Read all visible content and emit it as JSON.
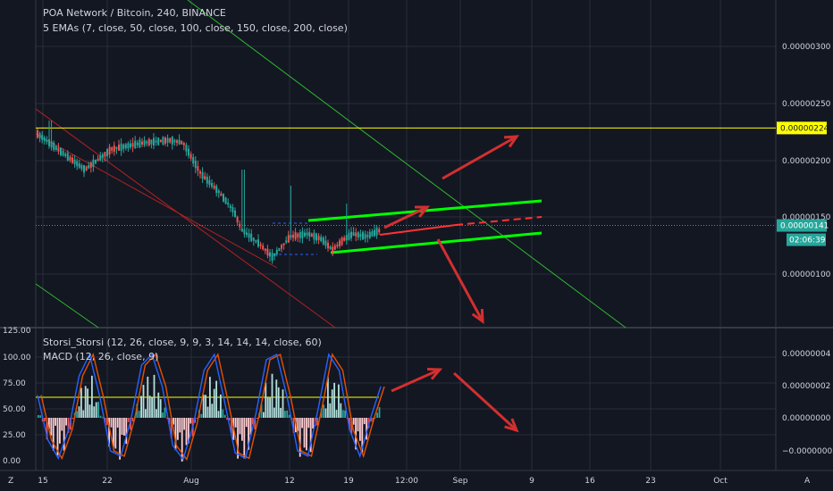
{
  "header": {
    "title": "POA Network / Bitcoin, 240, BINANCE",
    "indicator": "5 EMAs (7, close, 50, close, 100, close, 150, close, 200, close)"
  },
  "sub_header": {
    "indicator1": "Storsi_Storsi (12, 26, close, 9, 9, 3, 14, 14, 14, close, 60)",
    "indicator2": "MACD (12, 26, close, 9)"
  },
  "price_badges": {
    "yellow_level": "0.00000224",
    "last_price": "0.00000141",
    "countdown": "02:06:39"
  },
  "footer": {
    "z_label": "Z",
    "a_label": "A"
  },
  "colors": {
    "background": "#131722",
    "grid": "#2a2e39",
    "up_candle": "#26a69a",
    "down_candle": "#ef5350",
    "yellow_line": "#ffff00",
    "channel_green": "#00ff00",
    "trend_green": "#2eb82e",
    "trend_red": "#b22222",
    "arrow_red": "#d32f2f",
    "stoch_k": "#2962ff",
    "stoch_d": "#e65100"
  },
  "chart_data": [
    {
      "type": "candlestick",
      "title": "POA Network / Bitcoin, 240, BINANCE",
      "x_ticks": [
        "15",
        "22",
        "Aug",
        "12",
        "19",
        "12:00",
        "Sep",
        "9",
        "16",
        "23",
        "Oct"
      ],
      "y_ticks": [
        "0.00000300",
        "0.00000250",
        "0.00000200",
        "0.00000150",
        "0.00000100"
      ],
      "ylim": [
        5.4e-07,
        3.33e-06
      ],
      "key_levels": {
        "resistance": 2.24e-06,
        "last_price": 1.41e-06
      },
      "price_path": [
        {
          "x": "Jul 14",
          "y": 2.18e-06
        },
        {
          "x": "Jul 17",
          "y": 2.08e-06
        },
        {
          "x": "Jul 20",
          "y": 2.01e-06
        },
        {
          "x": "Jul 23",
          "y": 2.14e-06
        },
        {
          "x": "Jul 26",
          "y": 2.18e-06
        },
        {
          "x": "Jul 29",
          "y": 2.21e-06
        },
        {
          "x": "Aug 1",
          "y": 2.18e-06
        },
        {
          "x": "Aug 3",
          "y": 1.96e-06
        },
        {
          "x": "Aug 5",
          "y": 1.8e-06
        },
        {
          "x": "Aug 7",
          "y": 1.62e-06
        },
        {
          "x": "Aug 8",
          "y": 1.41e-06
        },
        {
          "x": "Aug 10",
          "y": 1.18e-06
        },
        {
          "x": "Aug 11",
          "y": 1.18e-06
        },
        {
          "x": "Aug 12",
          "y": 1.41e-06
        },
        {
          "x": "Aug 13",
          "y": 1.38e-06
        },
        {
          "x": "Aug 15",
          "y": 1.33e-06
        },
        {
          "x": "Aug 17",
          "y": 1.24e-06
        },
        {
          "x": "Aug 18",
          "y": 1.33e-06
        },
        {
          "x": "Aug 19",
          "y": 1.41e-06
        },
        {
          "x": "Aug 21",
          "y": 1.36e-06
        },
        {
          "x": "Aug 23",
          "y": 1.41e-06
        }
      ]
    },
    {
      "type": "line",
      "title": "Storsi_Storsi (12, 26, close, 9, 9, 3, 14, 14, 14, close, 60)",
      "y_ticks_left": [
        "125.00",
        "100.00",
        "75.00",
        "50.00",
        "25.00",
        "0.00"
      ],
      "ylim": [
        0,
        125
      ],
      "reference_level": 60,
      "series": [
        {
          "name": "",
          "values": [
            62,
            20,
            3,
            30,
            80,
            100,
            60,
            10,
            5,
            40,
            90,
            100,
            70,
            15,
            2,
            35,
            85,
            100,
            55,
            8,
            3,
            45,
            95,
            100,
            60,
            10,
            5,
            50,
            100,
            85,
            30,
            5,
            40,
            70
          ]
        }
      ]
    },
    {
      "type": "bar",
      "title": "MACD (12, 26, close, 9)",
      "y_ticks_right": [
        "0.00000004",
        "0.00000002",
        "0.00000000",
        "−0.00000002"
      ],
      "ylim": [
        -2.8e-08,
        4.8e-08
      ]
    }
  ]
}
